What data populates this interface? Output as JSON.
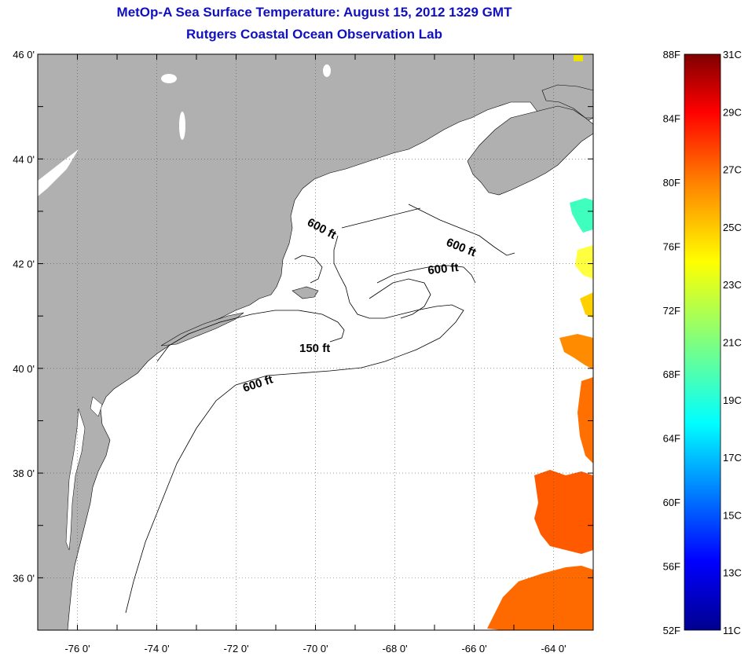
{
  "header": {
    "title": "MetOp-A Sea Surface Temperature:  August 15, 2012 1329 GMT",
    "subtitle": "Rutgers Coastal Ocean Observation Lab"
  },
  "map": {
    "lon_range": [
      -77,
      -63
    ],
    "lat_range": [
      35,
      46
    ],
    "lon_ticks": [
      {
        "value": -76,
        "label": "-76 0'"
      },
      {
        "value": -74,
        "label": "-74 0'"
      },
      {
        "value": -72,
        "label": "-72 0'"
      },
      {
        "value": -70,
        "label": "-70 0'"
      },
      {
        "value": -68,
        "label": "-68 0'"
      },
      {
        "value": -66,
        "label": "-66 0'"
      },
      {
        "value": -64,
        "label": "-64 0'"
      }
    ],
    "lat_ticks": [
      {
        "value": 46,
        "label": "46 0'"
      },
      {
        "value": 44,
        "label": "44 0'"
      },
      {
        "value": 42,
        "label": "42 0'"
      },
      {
        "value": 40,
        "label": "40 0'"
      },
      {
        "value": 38,
        "label": "38 0'"
      },
      {
        "value": 36,
        "label": "36 0'"
      }
    ],
    "grid": "dotted",
    "colors": {
      "land": "#b0b0b0",
      "water": "#ffffff",
      "contour": "#000000"
    },
    "contour_labels": [
      "600 ft",
      "600 ft",
      "600 ft",
      "150 ft",
      "600 ft"
    ]
  },
  "colorbar": {
    "fahrenheit_labels": [
      "88F",
      "84F",
      "80F",
      "76F",
      "72F",
      "68F",
      "64F",
      "60F",
      "56F",
      "52F"
    ],
    "celsius_labels": [
      "31C",
      "29C",
      "27C",
      "25C",
      "23C",
      "21C",
      "19C",
      "17C",
      "15C",
      "13C",
      "11C"
    ],
    "range_c": [
      11,
      31
    ],
    "range_f": [
      52,
      88
    ],
    "colors": [
      "#00008f",
      "#0000ff",
      "#007fff",
      "#00ffff",
      "#7fff7f",
      "#ffff00",
      "#ff7f00",
      "#ff0000",
      "#7f0000"
    ]
  }
}
